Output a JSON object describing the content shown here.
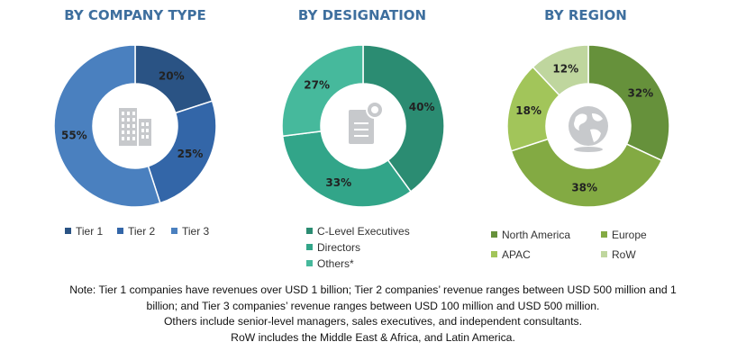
{
  "colors": {
    "title": "#3e6f9e",
    "hole": "#ffffff",
    "icon": "#c7c9cc"
  },
  "chart_data": [
    {
      "type": "pie",
      "title": "BY COMPANY TYPE",
      "donut": true,
      "center_icon": "building-icon",
      "slices": [
        {
          "name": "Tier 1",
          "value": 20,
          "label": "20%",
          "color": "#2a5384"
        },
        {
          "name": "Tier 2",
          "value": 25,
          "label": "25%",
          "color": "#3366a8"
        },
        {
          "name": "Tier 3",
          "value": 55,
          "label": "55%",
          "color": "#4a80bf"
        }
      ],
      "legend_position": "bottom"
    },
    {
      "type": "pie",
      "title": "BY DESIGNATION",
      "donut": true,
      "center_icon": "document-icon",
      "slices": [
        {
          "name": "C-Level Executives",
          "value": 40,
          "label": "40%",
          "color": "#2b8c72"
        },
        {
          "name": "Directors",
          "value": 33,
          "label": "33%",
          "color": "#32a589"
        },
        {
          "name": "Others*",
          "value": 27,
          "label": "27%",
          "color": "#46b99c"
        }
      ],
      "legend_position": "bottom"
    },
    {
      "type": "pie",
      "title": "BY REGION",
      "donut": true,
      "center_icon": "globe-icon",
      "slices": [
        {
          "name": "North America",
          "value": 32,
          "label": "32%",
          "color": "#66913b"
        },
        {
          "name": "Europe",
          "value": 38,
          "label": "38%",
          "color": "#83aa43"
        },
        {
          "name": "APAC",
          "value": 18,
          "label": "18%",
          "color": "#a2c55a"
        },
        {
          "name": "RoW",
          "value": 12,
          "label": "12%",
          "color": "#bfd69e"
        }
      ],
      "legend_position": "bottom"
    }
  ],
  "note": {
    "lines": [
      "Note: Tier 1 companies have revenues over USD 1 billion; Tier 2 companies’ revenue ranges between USD 500 million and 1",
      "billion; and Tier 3 companies’ revenue ranges between USD 100 million and USD 500 million.",
      "Others include senior-level managers, sales executives, and independent consultants.",
      "RoW includes the Middle East & Africa, and Latin America."
    ]
  }
}
